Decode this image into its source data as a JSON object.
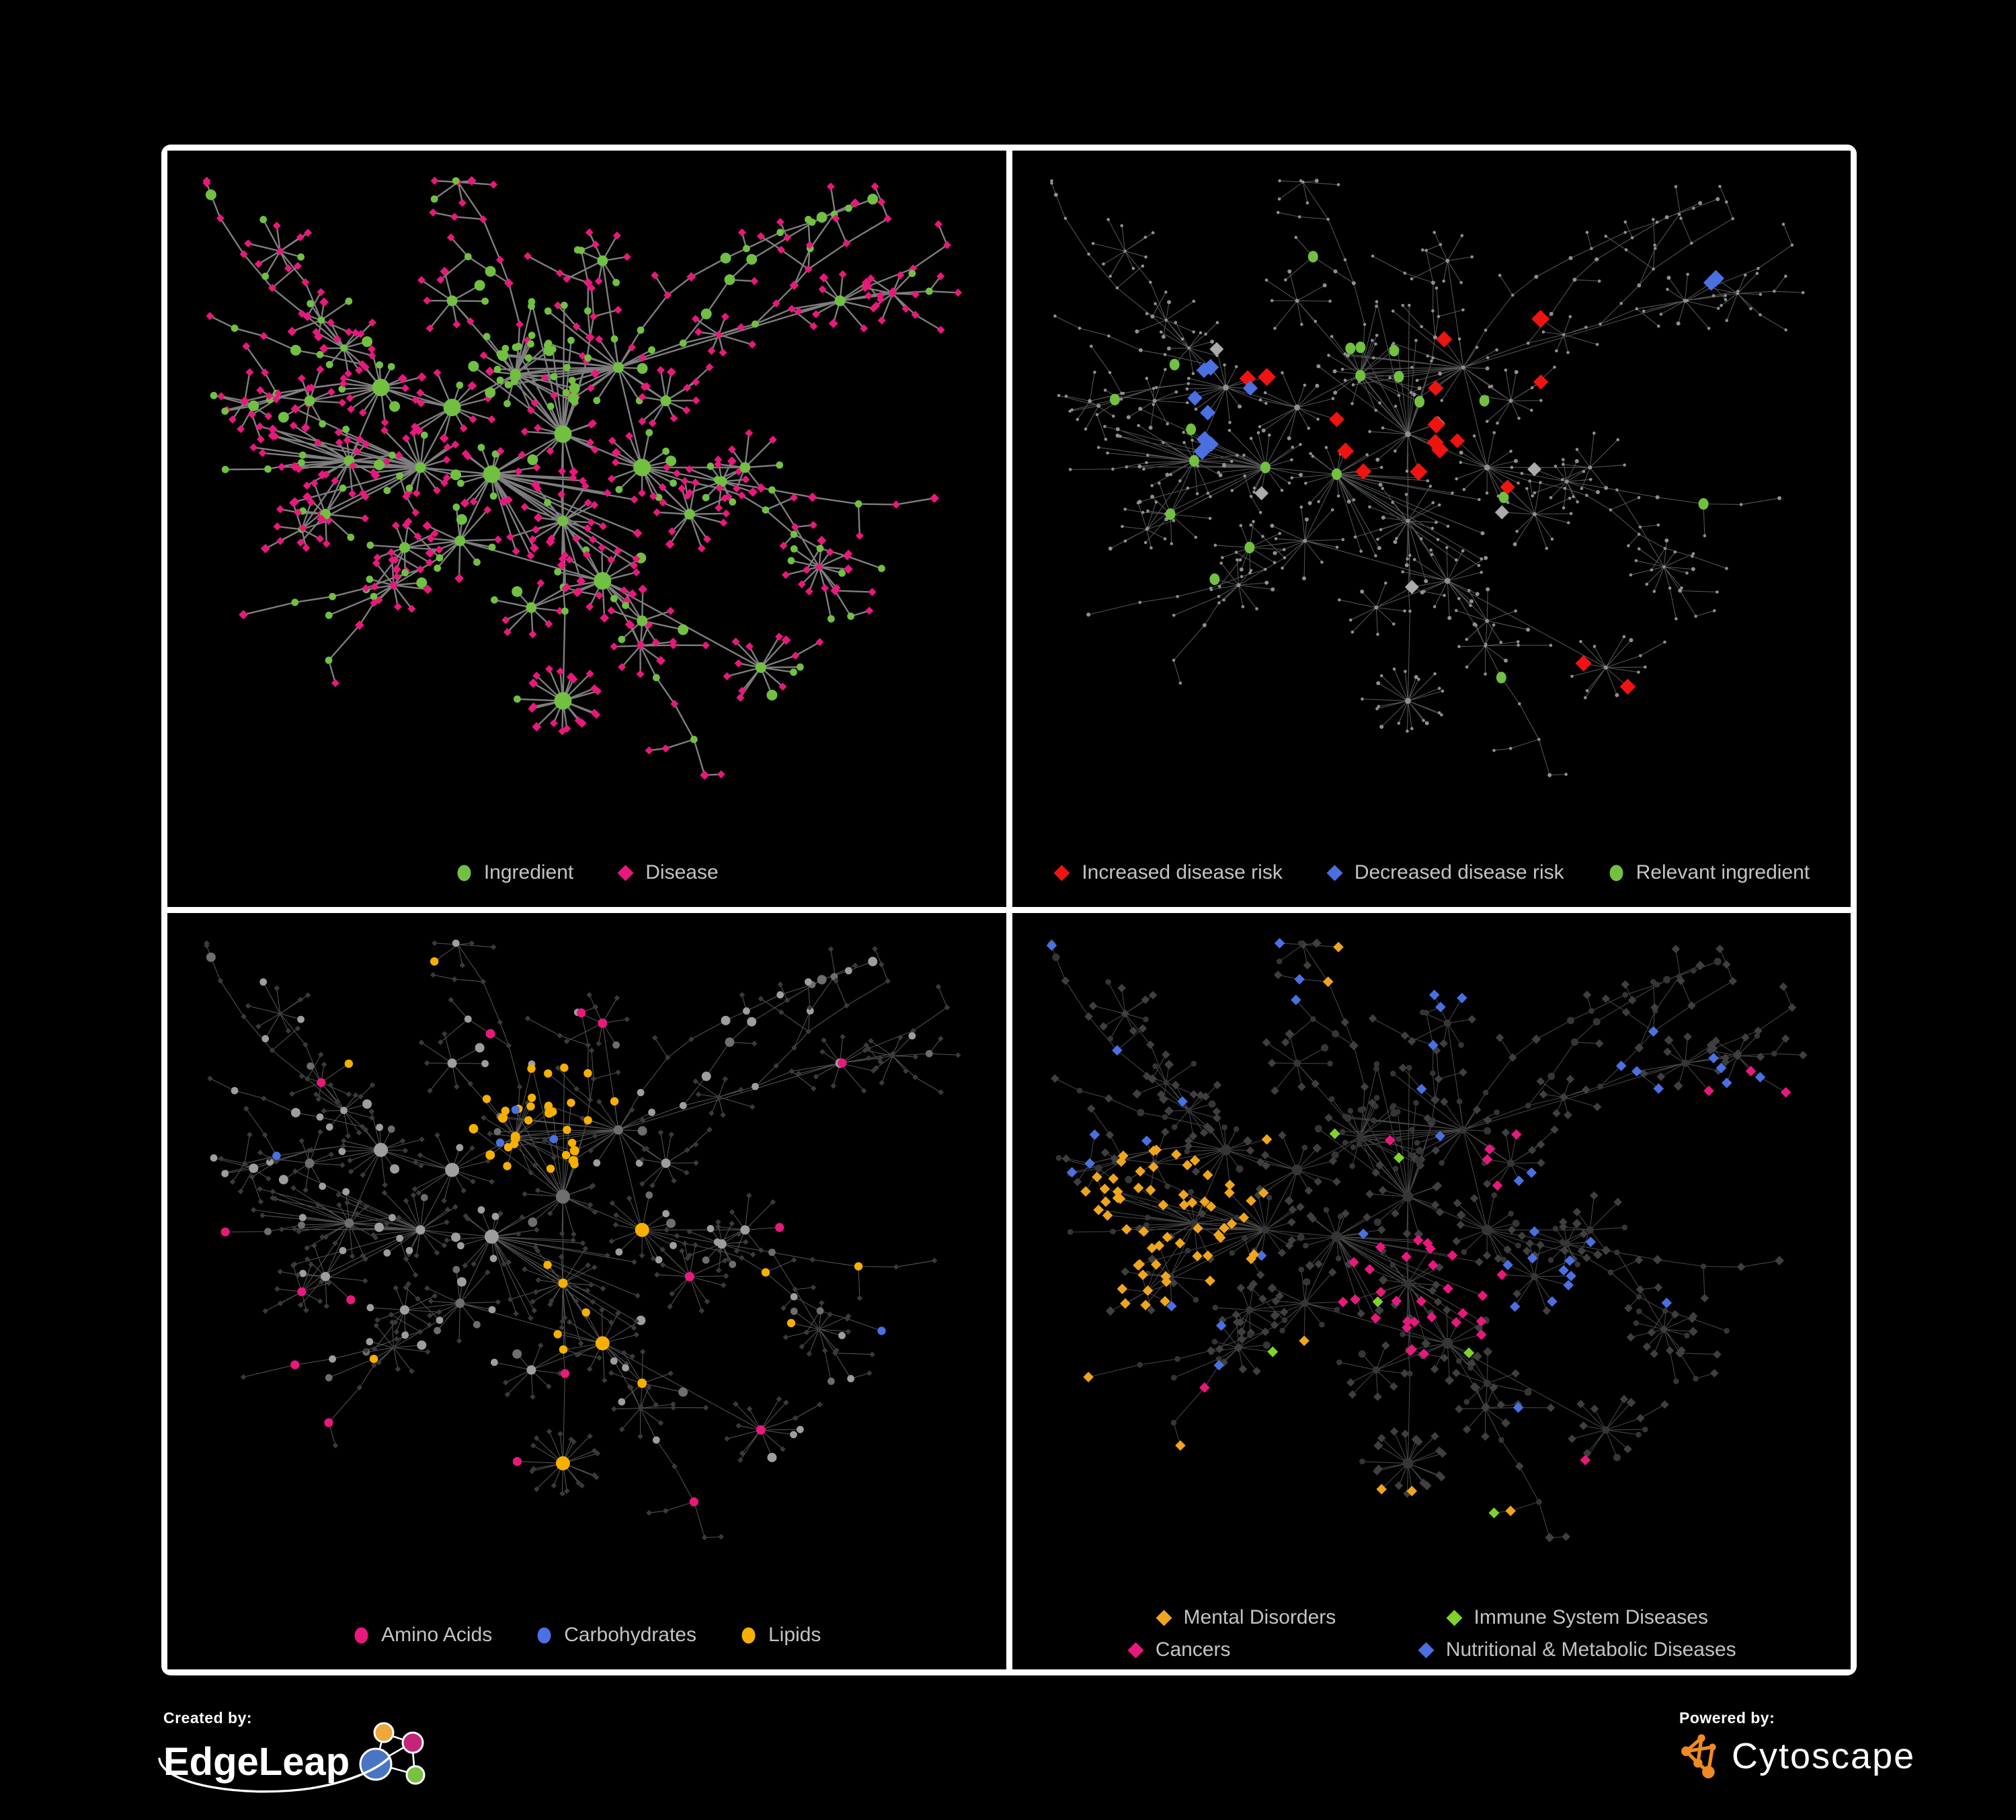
{
  "page": {
    "background": "#000000",
    "panel_background": "#000000",
    "frame_color": "#ffffff",
    "legend_text_color": "#c3c3c3"
  },
  "panels": [
    {
      "name": "ingredient-disease-network",
      "legend_rows": [
        [
          {
            "shape": "ellipse",
            "color": "#72c041",
            "label": "Ingredient"
          },
          {
            "shape": "diamond",
            "color": "#e9187c",
            "label": "Disease"
          }
        ]
      ]
    },
    {
      "name": "disease-risk-network",
      "legend_rows": [
        [
          {
            "shape": "diamond",
            "color": "#ee1411",
            "label": "Increased disease risk"
          },
          {
            "shape": "diamond",
            "color": "#4a70e2",
            "label": "Decreased disease risk"
          },
          {
            "shape": "ellipse",
            "color": "#72c041",
            "label": "Relevant ingredient"
          }
        ]
      ]
    },
    {
      "name": "nutrient-class-network",
      "legend_rows": [
        [
          {
            "shape": "ellipse",
            "color": "#e9187c",
            "label": "Amino Acids"
          },
          {
            "shape": "ellipse",
            "color": "#4a70e2",
            "label": "Carbohydrates"
          },
          {
            "shape": "ellipse",
            "color": "#f7b000",
            "label": "Lipids"
          }
        ]
      ]
    },
    {
      "name": "disease-category-network",
      "legend_rows": [
        [
          {
            "shape": "diamond",
            "color": "#f0a51f",
            "label": "Mental Disorders"
          },
          {
            "shape": "diamond",
            "color": "#7fd32a",
            "label": "Immune System Diseases"
          }
        ],
        [
          {
            "shape": "diamond",
            "color": "#e9187c",
            "label": "Cancers"
          },
          {
            "shape": "diamond",
            "color": "#4a70e2",
            "label": "Nutritional & Metabolic Diseases"
          }
        ]
      ]
    }
  ],
  "footer": {
    "created_by_label": "Created by:",
    "created_by_brand": "EdgeLeap",
    "powered_by_label": "Powered by:",
    "powered_by_brand": "Cytoscape",
    "edgeleap_logo_colors": {
      "orange": "#eda73b",
      "pink": "#c52579",
      "blue": "#4a74c4",
      "green": "#7ac143"
    },
    "cytoscape_logo_color": "#ef8b22"
  },
  "network": {
    "seed": 11,
    "styles": {
      "p1": {
        "edge": "#949494",
        "edge_w": 2.4,
        "edge_o": 0.85,
        "ingredient": "#72c041",
        "disease": "#e9187c"
      },
      "p2": {
        "edge": "#8d8d8d",
        "edge_w": 1.05,
        "edge_o": 0.6,
        "node": "#909090",
        "red": "#ee1411",
        "blue": "#4a70e2",
        "gray": "#ababab",
        "green": "#72c041"
      },
      "p3": {
        "edge": "#8a8a8a",
        "edge_w": 1.05,
        "edge_o": 0.6,
        "circle": "#9e9e9e",
        "circle2": "#6e6e6e",
        "diamond": "#3a3a3a",
        "amino": "#e9187c",
        "carb": "#4a70e2",
        "lipid": "#f7b000"
      },
      "p4": {
        "edge": "#808080",
        "edge_w": 1.05,
        "edge_o": 0.55,
        "circle": "#353535",
        "diamond": "#3f3f3f",
        "mental": "#f0a51f",
        "immune": "#7fd32a",
        "cancer": "#e9187c",
        "nutri": "#4a70e2"
      }
    }
  }
}
